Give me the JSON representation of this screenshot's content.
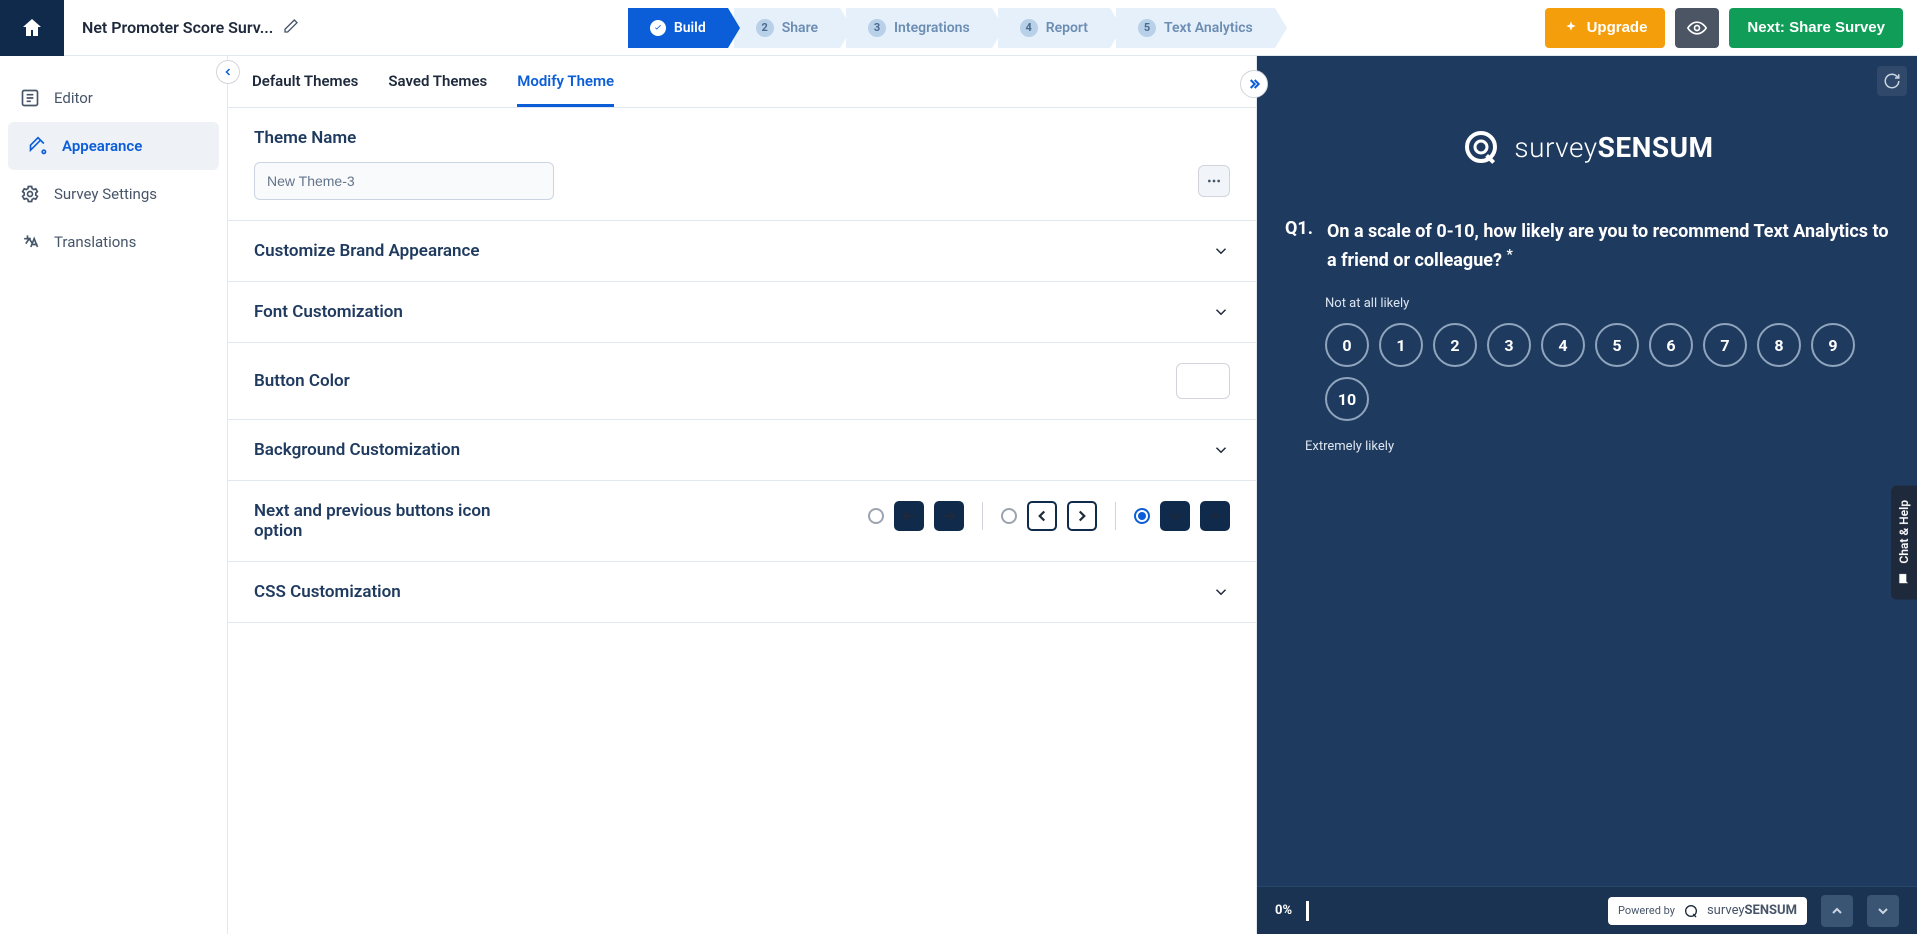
{
  "topbar": {
    "survey_title": "Net Promoter Score Surv...",
    "steps": [
      {
        "label": "Build",
        "active": true
      },
      {
        "label": "Share",
        "num": "2"
      },
      {
        "label": "Integrations",
        "num": "3"
      },
      {
        "label": "Report",
        "num": "4"
      },
      {
        "label": "Text Analytics",
        "num": "5"
      }
    ],
    "upgrade": "Upgrade",
    "next": "Next: Share Survey"
  },
  "sidebar": {
    "items": [
      {
        "label": "Editor"
      },
      {
        "label": "Appearance",
        "active": true
      },
      {
        "label": "Survey Settings"
      },
      {
        "label": "Translations"
      }
    ]
  },
  "tabs": {
    "default": "Default Themes",
    "saved": "Saved Themes",
    "modify": "Modify Theme"
  },
  "sections": {
    "theme_name_label": "Theme Name",
    "theme_name_value": "New Theme-3",
    "brand": "Customize Brand Appearance",
    "font": "Font Customization",
    "button_color": "Button Color",
    "background": "Background Customization",
    "nav_buttons": "Next and previous buttons icon option",
    "css": "CSS Customization"
  },
  "preview": {
    "logo_pre": "survey",
    "logo_bold": "SENSUM",
    "q_num": "Q1.",
    "q_text": "On a scale of 0-10, how likely are you to recommend Text Analytics to a friend or colleague?",
    "required": "*",
    "label_low": "Not at all likely",
    "label_high": "Extremely likely",
    "scale": [
      "0",
      "1",
      "2",
      "3",
      "4",
      "5",
      "6",
      "7",
      "8",
      "9",
      "10"
    ],
    "progress": "0%",
    "powered": "Powered by",
    "powered_brand_pre": "survey",
    "powered_brand_bold": "SENSUM"
  },
  "chat_help": "Chat & Help",
  "colors": {
    "primary": "#0b5ed7",
    "dark_navy": "#0f2a4a",
    "preview_bg": "#1f3a5f",
    "upgrade": "#f59e0b",
    "next": "#0f9d58"
  }
}
